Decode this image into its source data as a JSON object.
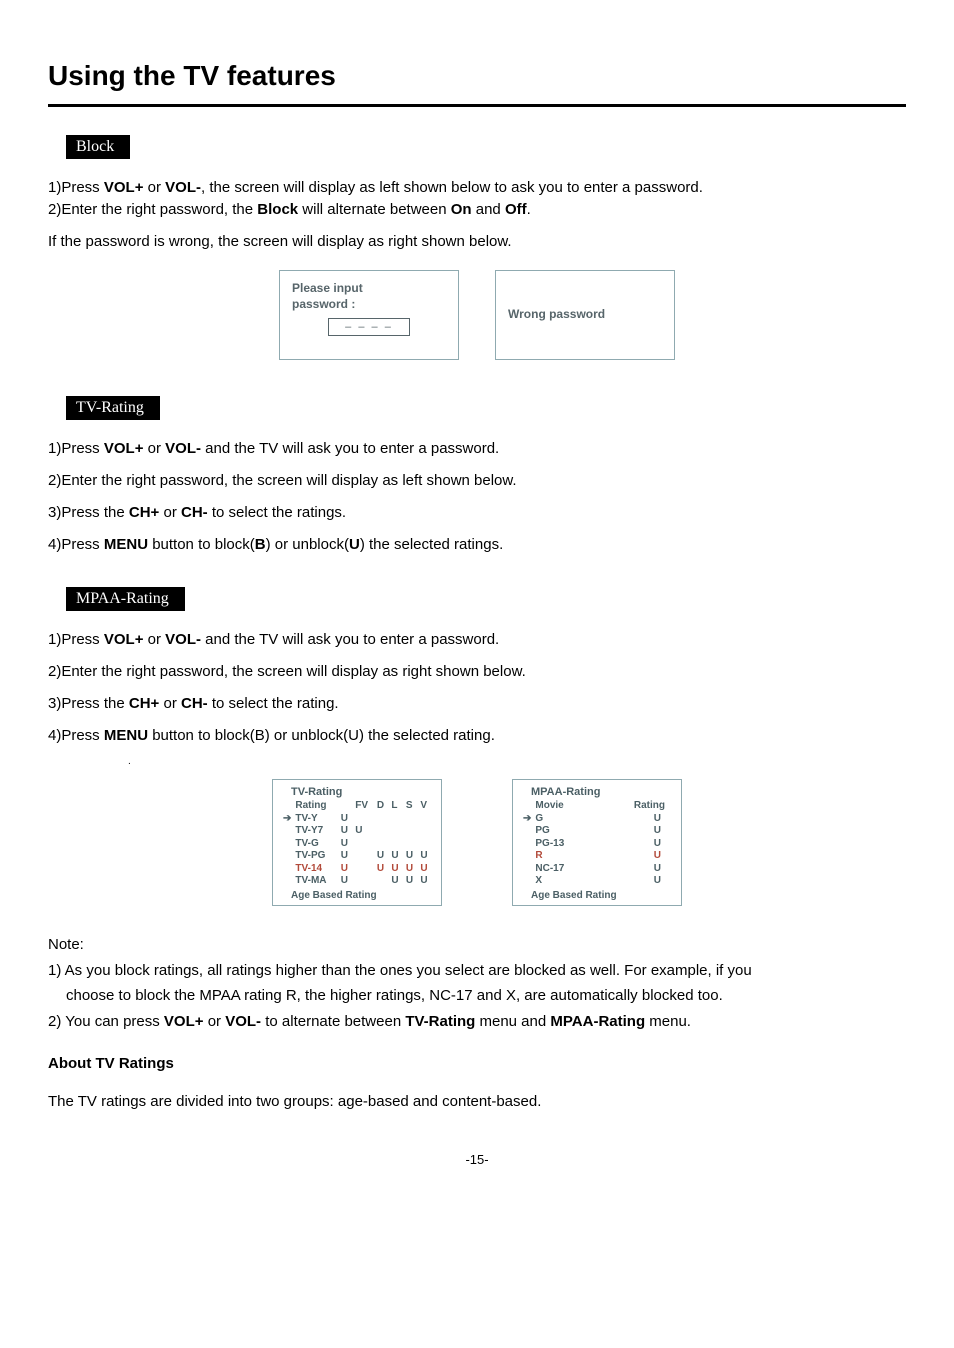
{
  "page": {
    "title": "Using the TV features",
    "pagenum": "-15-"
  },
  "block": {
    "tab": "Block",
    "p1_a": "1)Press ",
    "p1_b": "VOL+",
    "p1_c": " or ",
    "p1_d": "VOL-",
    "p1_e": ",  the screen will display as left shown below to ask you to enter a password.",
    "p2_a": "2)Enter  the right password, the ",
    "p2_b": "Block",
    "p2_c": " will alternate between ",
    "p2_d": "On",
    "p2_e": " and ",
    "p2_f": "Off",
    "p2_g": ".",
    "p3": " If the password is wrong, the screen will display as right shown below.",
    "popup1_l1": "Please input",
    "popup1_l2": "password  :",
    "popup1_input": "– – – –",
    "popup2": "Wrong password"
  },
  "tvrating": {
    "tab": "TV-Rating",
    "p1_a": "1)Press ",
    "p1_b": "VOL+",
    "p1_c": " or ",
    "p1_d": "VOL-",
    "p1_e": " and the TV will ask you to enter a password.",
    "p2": "2)Enter the right password,  the screen will display as left shown below.",
    "p3_a": "3)Press the ",
    "p3_b": "CH+",
    "p3_c": " or ",
    "p3_d": "CH-",
    "p3_e": " to select the ratings.",
    "p4_a": "4)Press ",
    "p4_b": "MENU",
    "p4_c": " button to block(",
    "p4_d": "B",
    "p4_e": ") or unblock(",
    "p4_f": "U",
    "p4_g": ") the selected ratings."
  },
  "mpaa": {
    "tab": "MPAA-Rating",
    "p1_a": "1)Press ",
    "p1_b": "VOL+",
    "p1_c": " or ",
    "p1_d": "VOL-",
    "p1_e": " and the TV will ask you to enter a password.",
    "p2": "2)Enter the right password, the screen will display as right shown below.",
    "p3_a": "3)Press the ",
    "p3_b": "CH+",
    "p3_c": " or ",
    "p3_d": "CH-",
    "p3_e": "  to select the rating.",
    "p4_a": "4)Press ",
    "p4_b": "MENU",
    "p4_c": " button to block(B) or unblock(U) the selected rating.",
    "dot": "."
  },
  "tv_box": {
    "title": "TV-Rating",
    "columns": [
      "Rating",
      "",
      "FV",
      "D",
      "L",
      "S",
      "V"
    ],
    "rows": [
      [
        "TV-Y",
        "U",
        "",
        "",
        "",
        "",
        ""
      ],
      [
        "TV-Y7",
        "U",
        "U",
        "",
        "",
        "",
        ""
      ],
      [
        "TV-G",
        "U",
        "",
        "",
        "",
        "",
        ""
      ],
      [
        "TV-PG",
        "U",
        "",
        "U",
        "U",
        "U",
        "U"
      ],
      [
        "TV-14",
        "U",
        "",
        "U",
        "U",
        "U",
        "U"
      ],
      [
        "TV-MA",
        "U",
        "",
        "",
        "U",
        "U",
        "U"
      ]
    ],
    "footer": "Age Based Rating",
    "arrow_row_index": 0,
    "red_row_index": 4,
    "border_color": "#8faab0",
    "text_color": "#4b5f65",
    "red_color": "#b24a3a"
  },
  "mpaa_box": {
    "title": "MPAA-Rating",
    "header_left": "Movie",
    "header_right": "Rating",
    "rows": [
      [
        "G",
        "U"
      ],
      [
        "PG",
        "U"
      ],
      [
        "PG-13",
        "U"
      ],
      [
        "R",
        "U"
      ],
      [
        "NC-17",
        "U"
      ],
      [
        "X",
        "U"
      ]
    ],
    "footer": "Age Based Rating",
    "arrow_row_index": 0,
    "red_row_index": 3,
    "border_color": "#8faab0",
    "text_color": "#4b5f65",
    "red_color": "#b24a3a"
  },
  "notes": {
    "heading": "Note:",
    "n1a": "1) As you block ratings, all ratings higher than the ones you select are blocked as well. For example, if you",
    "n1b": "choose to block the MPAA rating R, the higher ratings, NC-17 and X, are automatically blocked too.",
    "n2_a": "2) You can press ",
    "n2_b": "VOL+",
    "n2_c": " or ",
    "n2_d": "VOL-",
    "n2_e": " to alternate between ",
    "n2_f": "TV-Rating",
    "n2_g": " menu and ",
    "n2_h": "MPAA-Rating",
    "n2_i": " menu.",
    "about_heading": "About TV Ratings",
    "about_p": "The TV ratings are divided into two groups: age-based and content-based."
  }
}
